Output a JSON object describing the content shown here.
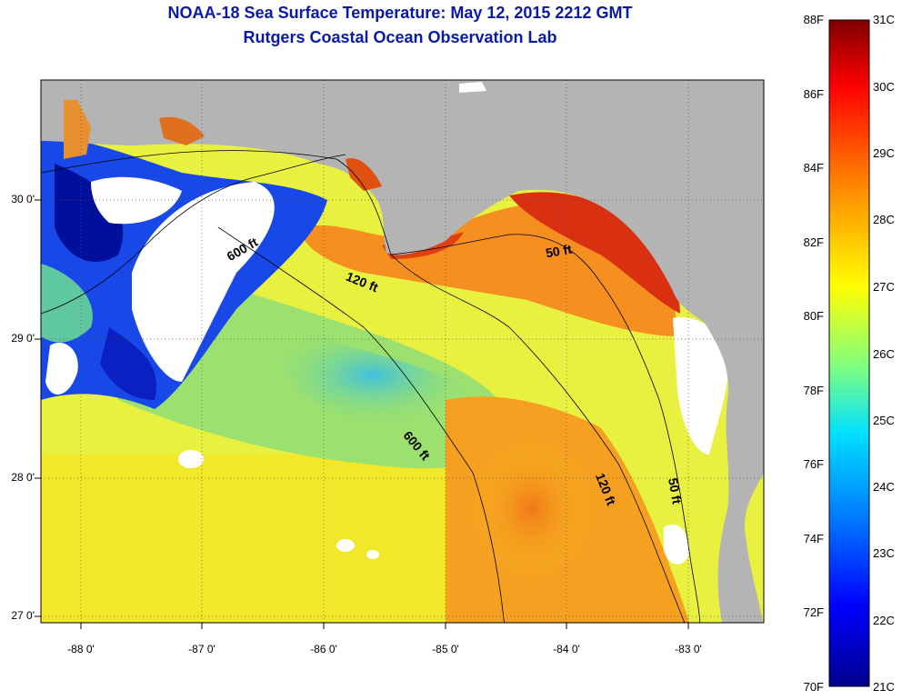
{
  "title": {
    "line1": "NOAA-18 Sea Surface Temperature:  May 12, 2015 2212 GMT",
    "line2": "Rutgers Coastal Ocean Observation Lab"
  },
  "colorbar": {
    "fahrenheit_labels": [
      "88F",
      "86F",
      "84F",
      "82F",
      "80F",
      "78F",
      "76F",
      "74F",
      "72F",
      "70F"
    ],
    "celsius_labels": [
      "31C",
      "30C",
      "29C",
      "28C",
      "27C",
      "26C",
      "25C",
      "24C",
      "23C",
      "22C",
      "21C"
    ],
    "colors": [
      "#00008b",
      "#0000ff",
      "#0080ff",
      "#00e0ff",
      "#80ff80",
      "#ffff00",
      "#ff8000",
      "#ff0000",
      "#800000"
    ]
  },
  "axes": {
    "longitude_labels": [
      "-88 0'",
      "-87 0'",
      "-86 0'",
      "-85 0'",
      "-84 0'",
      "-83 0'"
    ],
    "latitude_labels": [
      "30 0'",
      "29 0'",
      "28 0'",
      "27 0'"
    ]
  },
  "contour_labels": {
    "c600_north": "600 ft",
    "c120_north": "120 ft",
    "c50_north": "50 ft",
    "c600_south": "600 ft",
    "c120_south": "120 ft",
    "c50_south": "50 ft"
  },
  "colors": {
    "land": "#b4b4b4",
    "cloud": "#ffffff",
    "title": "#0a1aa8"
  }
}
